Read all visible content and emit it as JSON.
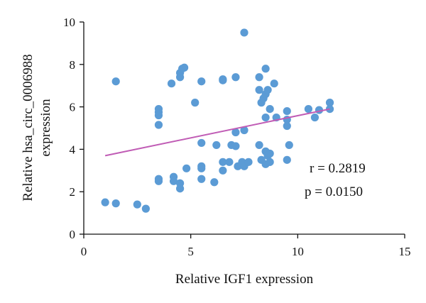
{
  "chart_data": {
    "type": "scatter",
    "xlabel": "Relative IGF1 expression",
    "ylabel_lines": [
      "Relative hsa_circ_0006988",
      "expression"
    ],
    "xlim": [
      0,
      15
    ],
    "ylim": [
      0,
      10
    ],
    "x_ticks": [
      0,
      5,
      10,
      15
    ],
    "y_ticks": [
      0,
      2,
      4,
      6,
      8,
      10
    ],
    "x_tick_labels": [
      "0",
      "5",
      "10",
      "15"
    ],
    "y_tick_labels": [
      "0",
      "2",
      "4",
      "6",
      "8",
      "10"
    ],
    "grid": false,
    "annotations": {
      "r_text": "r = 0.2819",
      "p_text": "p = 0.0150"
    },
    "trendline": {
      "x": [
        1.0,
        11.5
      ],
      "y": [
        3.7,
        5.9
      ]
    },
    "colors": {
      "points": "#5b9bd5",
      "trendline": "#c05cb5",
      "axis": "#111111"
    },
    "points": [
      {
        "x": 1.0,
        "y": 1.5
      },
      {
        "x": 1.5,
        "y": 1.45
      },
      {
        "x": 1.5,
        "y": 7.2
      },
      {
        "x": 2.5,
        "y": 1.4
      },
      {
        "x": 2.9,
        "y": 1.2
      },
      {
        "x": 3.5,
        "y": 2.5
      },
      {
        "x": 3.5,
        "y": 2.6
      },
      {
        "x": 3.5,
        "y": 5.15
      },
      {
        "x": 3.5,
        "y": 5.6
      },
      {
        "x": 3.5,
        "y": 5.75
      },
      {
        "x": 3.5,
        "y": 5.9
      },
      {
        "x": 4.1,
        "y": 7.1
      },
      {
        "x": 4.2,
        "y": 2.5
      },
      {
        "x": 4.2,
        "y": 2.7
      },
      {
        "x": 4.5,
        "y": 2.15
      },
      {
        "x": 4.5,
        "y": 2.4
      },
      {
        "x": 4.5,
        "y": 7.4
      },
      {
        "x": 4.5,
        "y": 7.6
      },
      {
        "x": 4.6,
        "y": 7.8
      },
      {
        "x": 4.7,
        "y": 7.85
      },
      {
        "x": 4.8,
        "y": 3.1
      },
      {
        "x": 5.2,
        "y": 6.2
      },
      {
        "x": 5.5,
        "y": 7.2
      },
      {
        "x": 5.5,
        "y": 4.3
      },
      {
        "x": 5.5,
        "y": 3.1
      },
      {
        "x": 5.5,
        "y": 3.2
      },
      {
        "x": 5.5,
        "y": 2.6
      },
      {
        "x": 6.1,
        "y": 2.45
      },
      {
        "x": 6.2,
        "y": 4.2
      },
      {
        "x": 6.5,
        "y": 7.3
      },
      {
        "x": 6.5,
        "y": 7.25
      },
      {
        "x": 6.5,
        "y": 3.0
      },
      {
        "x": 6.5,
        "y": 3.4
      },
      {
        "x": 6.8,
        "y": 3.4
      },
      {
        "x": 6.9,
        "y": 4.2
      },
      {
        "x": 7.1,
        "y": 7.4
      },
      {
        "x": 7.1,
        "y": 4.15
      },
      {
        "x": 7.1,
        "y": 4.8
      },
      {
        "x": 7.2,
        "y": 3.2
      },
      {
        "x": 7.4,
        "y": 3.4
      },
      {
        "x": 7.5,
        "y": 4.9
      },
      {
        "x": 7.5,
        "y": 9.5
      },
      {
        "x": 7.5,
        "y": 3.2
      },
      {
        "x": 7.7,
        "y": 3.4
      },
      {
        "x": 8.2,
        "y": 7.4
      },
      {
        "x": 8.2,
        "y": 6.8
      },
      {
        "x": 8.2,
        "y": 4.2
      },
      {
        "x": 8.3,
        "y": 3.5
      },
      {
        "x": 8.3,
        "y": 6.2
      },
      {
        "x": 8.4,
        "y": 6.4
      },
      {
        "x": 8.5,
        "y": 7.8
      },
      {
        "x": 8.5,
        "y": 6.6
      },
      {
        "x": 8.5,
        "y": 5.5
      },
      {
        "x": 8.5,
        "y": 3.9
      },
      {
        "x": 8.5,
        "y": 3.3
      },
      {
        "x": 8.6,
        "y": 3.7
      },
      {
        "x": 8.6,
        "y": 6.8
      },
      {
        "x": 8.7,
        "y": 5.9
      },
      {
        "x": 8.7,
        "y": 3.8
      },
      {
        "x": 8.7,
        "y": 3.4
      },
      {
        "x": 8.9,
        "y": 7.1
      },
      {
        "x": 9.0,
        "y": 5.5
      },
      {
        "x": 9.5,
        "y": 5.8
      },
      {
        "x": 9.5,
        "y": 5.4
      },
      {
        "x": 9.5,
        "y": 5.1
      },
      {
        "x": 9.5,
        "y": 3.5
      },
      {
        "x": 9.6,
        "y": 4.2
      },
      {
        "x": 10.5,
        "y": 5.9
      },
      {
        "x": 10.8,
        "y": 5.5
      },
      {
        "x": 11.0,
        "y": 5.85
      },
      {
        "x": 11.5,
        "y": 6.2
      },
      {
        "x": 11.5,
        "y": 5.9
      }
    ]
  }
}
